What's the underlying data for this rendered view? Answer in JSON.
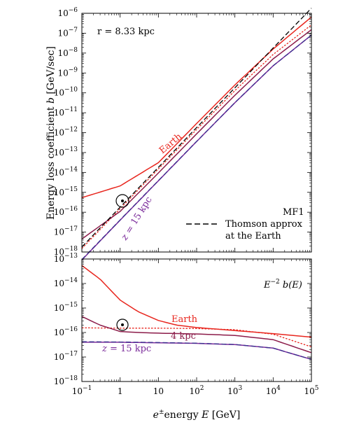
{
  "chart_data": [
    {
      "type": "line",
      "panel": "top",
      "xscale": "log",
      "yscale": "log",
      "xlim": [
        0.1,
        100000
      ],
      "ylim": [
        1e-18,
        1e-06
      ],
      "ylabel_prefix": "Energy loss coefficient ",
      "ylabel_var": "b",
      "ylabel_suffix": " [GeV/sec]",
      "x_ticks": [
        "10",
        "10",
        "10",
        "10",
        "10",
        "10",
        "10"
      ],
      "annotations": {
        "radius": "r = 8.33 kpc",
        "model": "MF1",
        "earth": "Earth",
        "z_var": "z",
        "z_value": " = 15 kpc",
        "legend_line1": "Thomson approx",
        "legend_line2": "at the Earth"
      },
      "series": [
        {
          "color": "#e8261e",
          "style": "solid",
          "x": [
            0.1,
            1,
            10,
            100,
            1000,
            10000,
            100000
          ],
          "y": [
            5.4e-16,
            2.1e-15,
            3.1e-14,
            2.9e-12,
            2.5e-10,
            1.6e-08,
            6.5e-07
          ]
        },
        {
          "color": "#e8261e",
          "style": "dotted",
          "x": [
            0.1,
            1,
            10,
            100,
            1000,
            10000,
            100000
          ],
          "y": [
            1.5e-18,
            1.5e-16,
            1.5e-14,
            1.45e-12,
            1.3e-10,
            8.5e-09,
            2.6e-07
          ]
        },
        {
          "color": "#8c1c4a",
          "style": "solid",
          "x": [
            0.1,
            1,
            10,
            100,
            1000,
            10000,
            100000
          ],
          "y": [
            4.5e-18,
            1.1e-16,
            9.4e-15,
            8.7e-13,
            7.6e-11,
            5.1e-09,
            1.5e-07
          ]
        },
        {
          "color": "#7a2a9a",
          "style": "solid",
          "x": [
            0.1,
            1,
            10,
            100,
            1000,
            10000,
            100000
          ],
          "y": [
            4e-19,
            4e-17,
            3.8e-15,
            3.6e-13,
            3.2e-11,
            2.3e-09,
            8e-08
          ]
        },
        {
          "color": "#3b2f8f",
          "style": "dashed",
          "x": [
            0.1,
            1,
            10,
            100,
            1000,
            10000,
            100000
          ],
          "y": [
            4.2e-19,
            4.1e-17,
            3.9e-15,
            3.65e-13,
            3.25e-11,
            2.3e-09,
            8e-08
          ]
        },
        {
          "color": "#000000",
          "style": "dashed",
          "name": "Thomson approx at the Earth",
          "x": [
            0.1,
            100000
          ],
          "y": [
            1.8e-18,
            1.8e-06
          ]
        }
      ]
    },
    {
      "type": "line",
      "panel": "bottom",
      "xscale": "log",
      "yscale": "log",
      "xlim": [
        0.1,
        100000
      ],
      "ylim": [
        1e-18,
        1e-13
      ],
      "xlabel_prefix": "energy ",
      "xlabel_var": "E",
      "xlabel_suffix": " [GeV]",
      "x_ticks": [
        "10",
        "1",
        "10",
        "10",
        "10",
        "10",
        "10"
      ],
      "annotations": {
        "title": "E",
        "title_exp": "−2",
        "title_rest": " b(E)",
        "earth": "Earth",
        "kpc4": "4 kpc",
        "z_var": "z",
        "z_value": " = 15 kpc"
      },
      "series": [
        {
          "color": "#e8261e",
          "style": "solid",
          "x": [
            0.1,
            0.3,
            1,
            3,
            10,
            30,
            100,
            1000,
            10000,
            100000
          ],
          "y": [
            5.4e-14,
            1.5e-14,
            2.1e-15,
            7e-16,
            3.1e-16,
            2e-16,
            1.6e-16,
            1.2e-16,
            9e-17,
            6.5e-17
          ]
        },
        {
          "color": "#e8261e",
          "style": "dotted",
          "x": [
            0.1,
            1,
            10,
            100,
            1000,
            10000,
            100000
          ],
          "y": [
            1.55e-16,
            1.5e-16,
            1.5e-16,
            1.45e-16,
            1.3e-16,
            8.5e-17,
            2.6e-17
          ]
        },
        {
          "color": "#8c1c4a",
          "style": "solid",
          "x": [
            0.1,
            0.3,
            1,
            3,
            10,
            100,
            1000,
            10000,
            100000
          ],
          "y": [
            4.5e-16,
            2e-16,
            1.1e-16,
            1e-16,
            9.4e-17,
            8.7e-17,
            7.6e-17,
            5.1e-17,
            1.5e-17
          ]
        },
        {
          "color": "#7a2a9a",
          "style": "solid",
          "x": [
            0.1,
            1,
            10,
            100,
            1000,
            10000,
            100000
          ],
          "y": [
            4e-17,
            4e-17,
            3.8e-17,
            3.6e-17,
            3.2e-17,
            2.3e-17,
            8e-18
          ]
        },
        {
          "color": "#3b2f8f",
          "style": "dashed",
          "x": [
            0.1,
            1,
            10,
            100,
            1000,
            10000,
            100000
          ],
          "y": [
            4.2e-17,
            4.1e-17,
            3.9e-17,
            3.65e-17,
            3.25e-17,
            2.3e-17,
            8e-18
          ]
        }
      ]
    }
  ]
}
